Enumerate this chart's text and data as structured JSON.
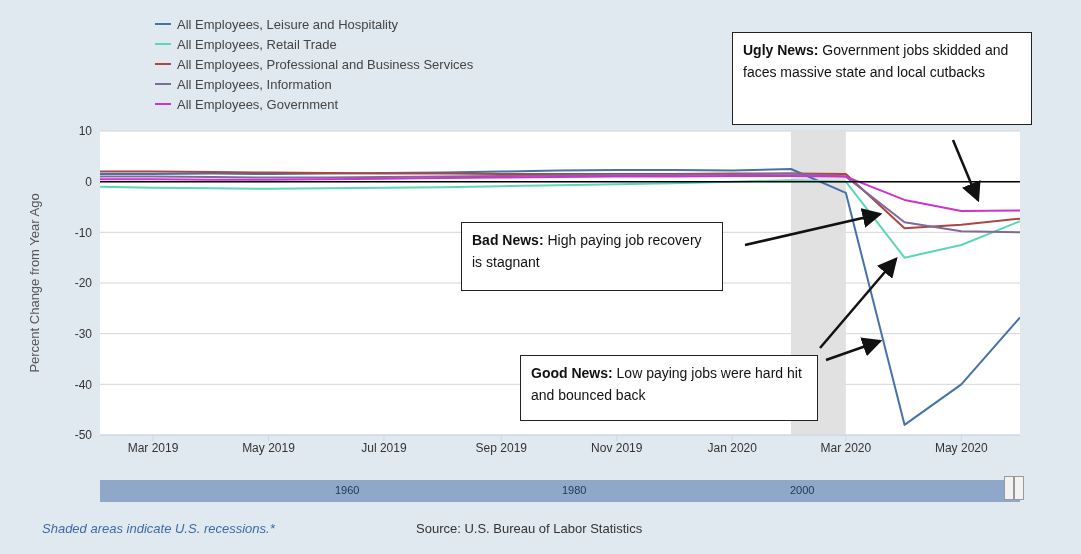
{
  "chart_data": {
    "type": "line",
    "ylabel": "Percent Change from Year Ago",
    "x": [
      "2019-02",
      "2019-03",
      "2019-04",
      "2019-05",
      "2019-06",
      "2019-07",
      "2019-08",
      "2019-09",
      "2019-10",
      "2019-11",
      "2019-12",
      "2020-01",
      "2020-02",
      "2020-03",
      "2020-04",
      "2020-05",
      "2020-06"
    ],
    "series": [
      {
        "name": "All Employees, Leisure and Hospitality",
        "color": "#4572a7",
        "values": [
          1.5,
          1.5,
          1.6,
          1.5,
          1.6,
          1.7,
          1.8,
          2.0,
          2.2,
          2.3,
          2.3,
          2.2,
          2.5,
          -2.2,
          -48,
          -40,
          -26.8
        ]
      },
      {
        "name": "All Employees, Retail Trade",
        "color": "#5cd6b8",
        "values": [
          -1,
          -1.2,
          -1.3,
          -1.4,
          -1.3,
          -1.2,
          -1.1,
          -0.9,
          -0.7,
          -0.5,
          -0.3,
          0,
          0.3,
          0,
          -15,
          -12.5,
          -7.8
        ]
      },
      {
        "name": "All Employees, Professional and Business Services",
        "color": "#aa4643",
        "values": [
          2,
          2,
          1.9,
          1.8,
          1.7,
          1.6,
          1.6,
          1.5,
          1.5,
          1.5,
          1.5,
          1.6,
          1.6,
          1.5,
          -9.2,
          -8.5,
          -7.3
        ]
      },
      {
        "name": "All Employees, Information",
        "color": "#80699b",
        "values": [
          1,
          1,
          0.9,
          0.8,
          0.8,
          0.9,
          1,
          1.1,
          1.2,
          1.3,
          1.3,
          1.4,
          1.6,
          1,
          -8,
          -9.8,
          -10
        ]
      },
      {
        "name": "All Employees, Government",
        "color": "#cc33cc",
        "values": [
          0.5,
          0.5,
          0.4,
          0.4,
          0.5,
          0.6,
          0.7,
          0.8,
          0.9,
          1,
          1,
          1.1,
          1.1,
          1,
          -3.6,
          -5.8,
          -5.7
        ]
      }
    ],
    "xlim": [
      "2019-02",
      "2020-06"
    ],
    "xticks": [
      {
        "value": "2019-03",
        "label": "Mar 2019"
      },
      {
        "value": "2019-05",
        "label": "May 2019"
      },
      {
        "value": "2019-07",
        "label": "Jul 2019"
      },
      {
        "value": "2019-09",
        "label": "Sep 2019"
      },
      {
        "value": "2019-11",
        "label": "Nov 2019"
      },
      {
        "value": "2020-01",
        "label": "Jan 2020"
      },
      {
        "value": "2020-03",
        "label": "Mar 2020"
      },
      {
        "value": "2020-05",
        "label": "May 2020"
      }
    ],
    "ylim": [
      -50,
      10
    ],
    "yticks": [
      10,
      0,
      -10,
      -20,
      -30,
      -40,
      -50
    ],
    "grid": "y",
    "legend": "top left",
    "marker": "none",
    "line_style": "solid",
    "bands": [
      {
        "axis": "x",
        "from": "2020-02",
        "to": "2020-03",
        "color": "#e1e1e1"
      }
    ],
    "ref_lines": [
      {
        "axis": "y",
        "value": 0,
        "color": "#000000"
      }
    ],
    "annotations": [
      "Ugly News: Government jobs skidded and faces massive state and local cutbacks",
      "Bad News: High paying job recovery is stagnant",
      "Good News: Low paying jobs were hard hit and bounced back",
      "Shaded areas indicate U.S. recessions.*",
      "Source: U.S. Bureau of Labor Statistics",
      "1960",
      "1980",
      "2000"
    ]
  }
}
